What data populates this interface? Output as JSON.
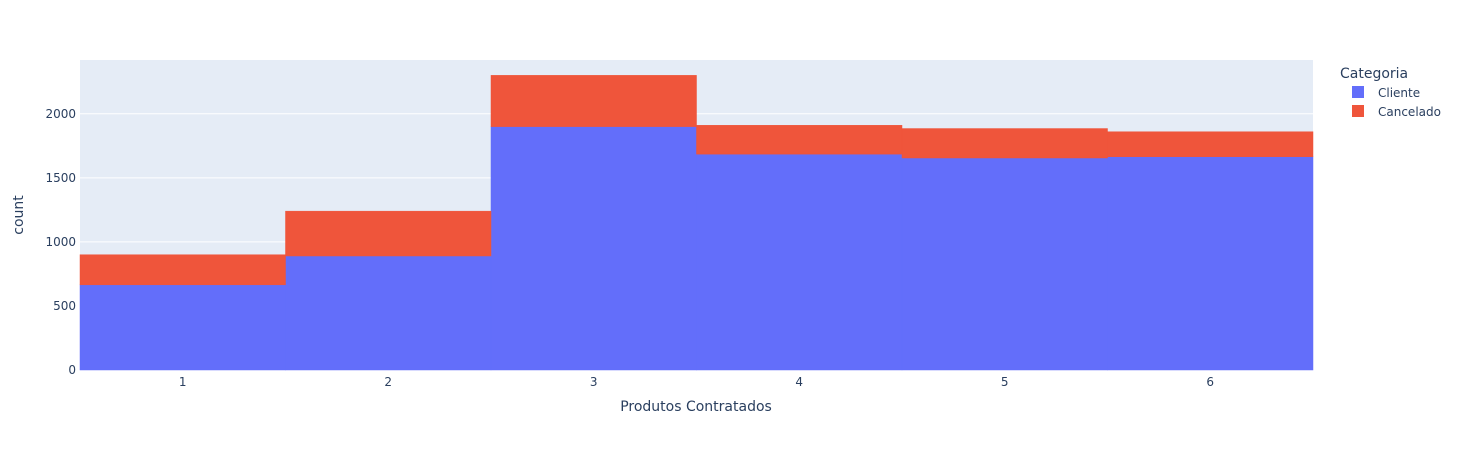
{
  "chart_data": {
    "type": "bar",
    "barmode": "stack",
    "categories": [
      "1",
      "2",
      "3",
      "4",
      "5",
      "6"
    ],
    "series": [
      {
        "name": "Cliente",
        "color": "#636efa",
        "values": [
          665,
          890,
          1900,
          1685,
          1655,
          1665
        ]
      },
      {
        "name": "Cancelado",
        "color": "#ef553b",
        "values": [
          235,
          350,
          400,
          225,
          230,
          195
        ]
      }
    ],
    "xlabel": "Produtos Contratados",
    "ylabel": "count",
    "ylim": [
      0,
      2420
    ],
    "yticks": [
      0,
      500,
      1000,
      1500,
      2000
    ],
    "ytick_labels": [
      "0",
      "500",
      "1000",
      "1500",
      "2000"
    ],
    "grid": true,
    "plot_background": "#e5ecf6",
    "legend": {
      "title": "Categoria",
      "placement": "right"
    }
  }
}
